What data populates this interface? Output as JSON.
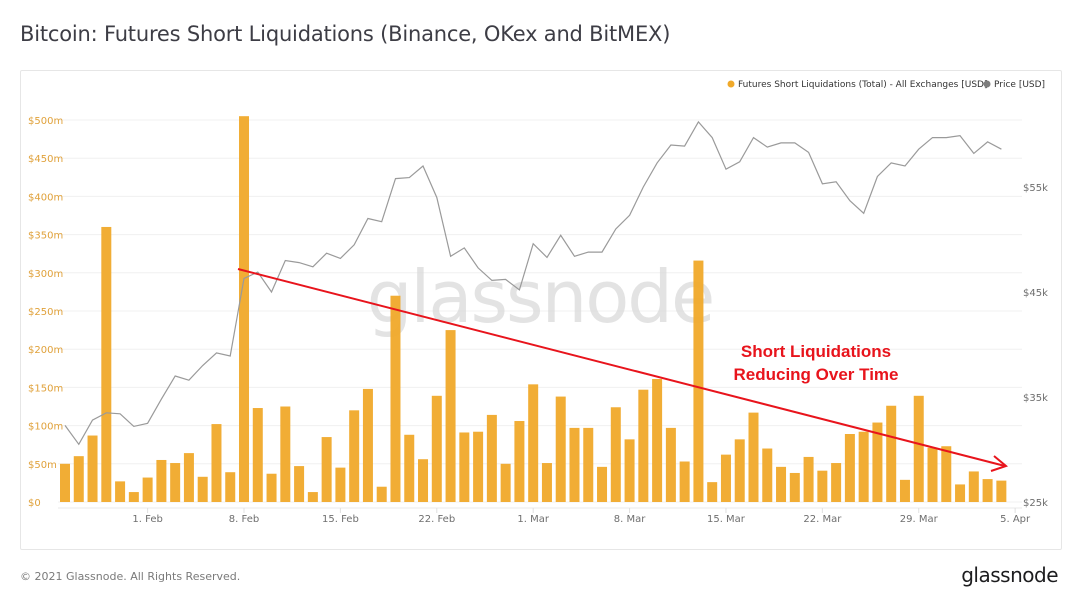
{
  "header": {
    "title": "Bitcoin: Futures Short Liquidations (Binance, OKex and BitMEX)"
  },
  "legend": {
    "items": [
      {
        "label": "Futures Short Liquidations (Total) - All Exchanges [USD]",
        "color": "#f0a92a"
      },
      {
        "label": "Price [USD]",
        "color": "#7d7d7d"
      }
    ]
  },
  "annotation": {
    "line1": "Short Liquidations",
    "line2": "Reducing Over Time",
    "color": "#e8141c"
  },
  "watermark": "glassnode",
  "footer": {
    "copyright": "© 2021 Glassnode. All Rights Reserved.",
    "logo": "glassnode"
  },
  "chart_data": {
    "type": "bar",
    "title": "Bitcoin: Futures Short Liquidations (Binance, OKex and BitMEX)",
    "xlabel": "",
    "ylabel": "Futures Short Liquidations [USD]",
    "y2label": "Price [USD]",
    "x_ticks": [
      "1. Feb",
      "8. Feb",
      "15. Feb",
      "22. Feb",
      "1. Mar",
      "8. Mar",
      "15. Mar",
      "22. Mar",
      "29. Mar",
      "5. Apr"
    ],
    "y_ticks": [
      "$0",
      "$50m",
      "$100m",
      "$150m",
      "$200m",
      "$250m",
      "$300m",
      "$350m",
      "$400m",
      "$450m",
      "$500m"
    ],
    "y2_ticks": [
      "$25k",
      "$35k",
      "$45k",
      "$55k"
    ],
    "ylim": [
      0,
      500
    ],
    "y2lim": [
      25000,
      60000
    ],
    "legend_position": "top-right",
    "grid": true,
    "start_date": "2021-01-26",
    "series": [
      {
        "name": "Futures Short Liquidations (Total) - All Exchanges [USD] (millions)",
        "type": "bar",
        "color": "#f0a92a",
        "values": [
          50,
          60,
          87,
          360,
          27,
          13,
          32,
          55,
          51,
          64,
          33,
          102,
          39,
          505,
          123,
          37,
          125,
          47,
          13,
          85,
          45,
          120,
          148,
          20,
          270,
          88,
          56,
          139,
          225,
          91,
          92,
          114,
          50,
          106,
          154,
          51,
          138,
          97,
          97,
          46,
          124,
          82,
          147,
          161,
          97,
          53,
          316,
          26,
          62,
          82,
          117,
          70,
          46,
          38,
          59,
          41,
          51,
          89,
          92,
          104,
          126,
          29,
          139,
          71,
          73,
          23,
          40,
          30,
          28
        ]
      },
      {
        "name": "Price [USD]",
        "type": "line",
        "color": "#8a8a8a",
        "values": [
          32300,
          30500,
          32800,
          33500,
          33400,
          32200,
          32500,
          34800,
          37000,
          36600,
          38000,
          39200,
          38900,
          46300,
          46900,
          45000,
          48000,
          47800,
          47400,
          48700,
          48200,
          49500,
          52000,
          51700,
          55800,
          55900,
          57000,
          54000,
          48400,
          49200,
          47300,
          46100,
          46200,
          45200,
          49600,
          48300,
          50400,
          48400,
          48800,
          48800,
          51000,
          52300,
          55000,
          57300,
          59000,
          58900,
          61200,
          59700,
          56700,
          57400,
          59700,
          58800,
          59200,
          59200,
          58300,
          55300,
          55500,
          53700,
          52500,
          56000,
          57300,
          57000,
          58600,
          59700,
          59700,
          59900,
          58200,
          59300,
          58600
        ]
      }
    ],
    "trendline": {
      "from": {
        "date": "2021-02-08",
        "value": 310
      },
      "to": {
        "date": "2021-04-05",
        "value": 52
      },
      "color": "#e8141c"
    },
    "annotations": [
      "Short Liquidations Reducing Over Time"
    ]
  }
}
